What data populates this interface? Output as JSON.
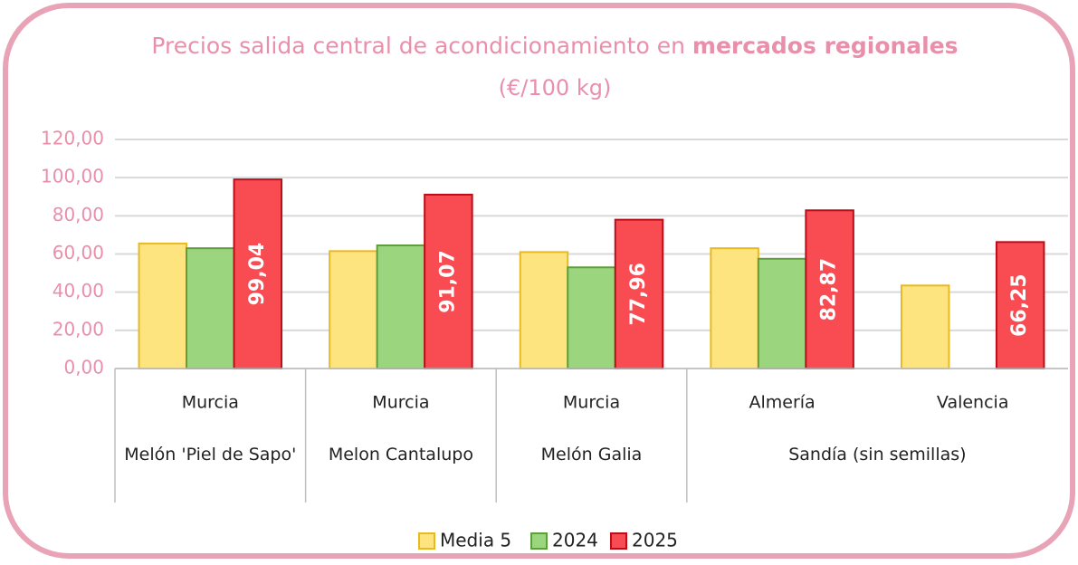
{
  "chart_data": {
    "type": "bar",
    "title": [
      "Precios salida central de acondicionamiento en",
      "mercados regionales"
    ],
    "subtitle": "(€/100 kg)",
    "categories": [
      "Murcia",
      "Murcia",
      "Murcia",
      "Almería",
      "Valencia"
    ],
    "groups": [
      {
        "label": "Melón 'Piel de Sapo'",
        "span": 1
      },
      {
        "label": "Melon Cantalupo",
        "span": 1
      },
      {
        "label": "Melón Galia",
        "span": 1
      },
      {
        "label": "Sandía (sin semillas)",
        "span": 2
      }
    ],
    "series": [
      {
        "name": "Media 5",
        "color": "#fde47f",
        "stroke": "#e8b923",
        "values": [
          65.5,
          61.5,
          61,
          63,
          43.5
        ]
      },
      {
        "name": "2024",
        "color": "#9bd57e",
        "stroke": "#5e9e3c",
        "values": [
          63,
          64.5,
          53,
          57.5,
          null
        ]
      },
      {
        "name": "2025",
        "color": "#f94c52",
        "stroke": "#b80f1a",
        "values": [
          99.04,
          91.07,
          77.96,
          82.87,
          66.25
        ],
        "value_labels": [
          "99,04",
          "91,07",
          "77,96",
          "82,87",
          "66,25"
        ]
      }
    ],
    "ylim": [
      0,
      120
    ],
    "yticks": [
      {
        "value": 0,
        "label": "0,00"
      },
      {
        "value": 20,
        "label": "20,00"
      },
      {
        "value": 40,
        "label": "40,00"
      },
      {
        "value": 60,
        "label": "60,00"
      },
      {
        "value": 80,
        "label": "80,00"
      },
      {
        "value": 100,
        "label": "100,00"
      },
      {
        "value": 120,
        "label": "120,00"
      }
    ],
    "grid": true,
    "legend": "bottom"
  }
}
